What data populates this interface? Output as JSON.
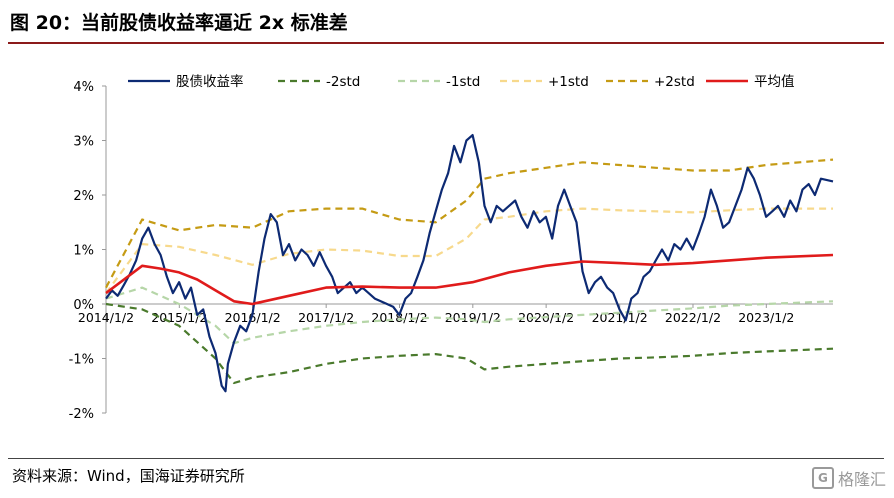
{
  "header": {
    "title": "图 20：当前股债收益率逼近 2x 标准差"
  },
  "footer": {
    "source": "资料来源：Wind，国海证券研究所",
    "watermark": "格隆汇",
    "watermark_mark": "G"
  },
  "chart_data": {
    "type": "line",
    "title": "",
    "xlabel": "",
    "ylabel": "",
    "x_ticks": [
      "2014/1/2",
      "2015/1/2",
      "2016/1/2",
      "2017/1/2",
      "2018/1/2",
      "2019/1/2",
      "2020/1/2",
      "2021/1/2",
      "2022/1/2",
      "2023/1/2"
    ],
    "y_ticks": [
      "4%",
      "3%",
      "2%",
      "1%",
      "0%",
      "-1%",
      "-2%"
    ],
    "ylim": [
      -2,
      4
    ],
    "xlim": [
      "2014-01-02",
      "2023-11-30"
    ],
    "legend_position": "top",
    "series": [
      {
        "name": "股债收益率",
        "color": "#0d2a73",
        "style": "solid",
        "width": 2.2,
        "points": [
          [
            "2014-01-02",
            0.1
          ],
          [
            "2014-02-01",
            0.25
          ],
          [
            "2014-03-01",
            0.15
          ],
          [
            "2014-04-01",
            0.35
          ],
          [
            "2014-05-01",
            0.55
          ],
          [
            "2014-06-01",
            0.8
          ],
          [
            "2014-07-01",
            1.2
          ],
          [
            "2014-08-01",
            1.4
          ],
          [
            "2014-09-01",
            1.1
          ],
          [
            "2014-10-01",
            0.9
          ],
          [
            "2014-11-01",
            0.5
          ],
          [
            "2014-12-01",
            0.2
          ],
          [
            "2015-01-01",
            0.4
          ],
          [
            "2015-02-01",
            0.1
          ],
          [
            "2015-03-01",
            0.3
          ],
          [
            "2015-04-01",
            -0.2
          ],
          [
            "2015-05-01",
            -0.1
          ],
          [
            "2015-06-01",
            -0.6
          ],
          [
            "2015-07-01",
            -0.9
          ],
          [
            "2015-08-01",
            -1.5
          ],
          [
            "2015-08-20",
            -1.6
          ],
          [
            "2015-09-01",
            -1.1
          ],
          [
            "2015-10-01",
            -0.7
          ],
          [
            "2015-11-01",
            -0.4
          ],
          [
            "2015-12-01",
            -0.5
          ],
          [
            "2016-01-01",
            -0.2
          ],
          [
            "2016-02-01",
            0.6
          ],
          [
            "2016-03-01",
            1.2
          ],
          [
            "2016-04-01",
            1.65
          ],
          [
            "2016-05-01",
            1.5
          ],
          [
            "2016-06-01",
            0.9
          ],
          [
            "2016-07-01",
            1.1
          ],
          [
            "2016-08-01",
            0.8
          ],
          [
            "2016-09-01",
            1.0
          ],
          [
            "2016-10-01",
            0.9
          ],
          [
            "2016-11-01",
            0.7
          ],
          [
            "2016-12-01",
            0.95
          ],
          [
            "2017-01-01",
            0.7
          ],
          [
            "2017-02-01",
            0.5
          ],
          [
            "2017-03-01",
            0.2
          ],
          [
            "2017-04-01",
            0.3
          ],
          [
            "2017-05-01",
            0.4
          ],
          [
            "2017-06-01",
            0.2
          ],
          [
            "2017-07-01",
            0.3
          ],
          [
            "2017-08-01",
            0.2
          ],
          [
            "2017-09-01",
            0.1
          ],
          [
            "2017-10-01",
            0.05
          ],
          [
            "2017-11-01",
            0.0
          ],
          [
            "2017-12-01",
            -0.05
          ],
          [
            "2018-01-01",
            -0.2
          ],
          [
            "2018-02-01",
            0.1
          ],
          [
            "2018-03-01",
            0.2
          ],
          [
            "2018-04-01",
            0.5
          ],
          [
            "2018-05-01",
            0.8
          ],
          [
            "2018-06-01",
            1.3
          ],
          [
            "2018-07-01",
            1.7
          ],
          [
            "2018-08-01",
            2.1
          ],
          [
            "2018-09-01",
            2.4
          ],
          [
            "2018-10-01",
            2.9
          ],
          [
            "2018-11-01",
            2.6
          ],
          [
            "2018-12-01",
            3.0
          ],
          [
            "2019-01-01",
            3.1
          ],
          [
            "2019-02-01",
            2.6
          ],
          [
            "2019-03-01",
            1.8
          ],
          [
            "2019-04-01",
            1.5
          ],
          [
            "2019-05-01",
            1.8
          ],
          [
            "2019-06-01",
            1.7
          ],
          [
            "2019-07-01",
            1.8
          ],
          [
            "2019-08-01",
            1.9
          ],
          [
            "2019-09-01",
            1.6
          ],
          [
            "2019-10-01",
            1.4
          ],
          [
            "2019-11-01",
            1.7
          ],
          [
            "2019-12-01",
            1.5
          ],
          [
            "2020-01-01",
            1.6
          ],
          [
            "2020-02-01",
            1.2
          ],
          [
            "2020-03-01",
            1.8
          ],
          [
            "2020-04-01",
            2.1
          ],
          [
            "2020-05-01",
            1.8
          ],
          [
            "2020-06-01",
            1.5
          ],
          [
            "2020-07-01",
            0.6
          ],
          [
            "2020-08-01",
            0.2
          ],
          [
            "2020-09-01",
            0.4
          ],
          [
            "2020-10-01",
            0.5
          ],
          [
            "2020-11-01",
            0.3
          ],
          [
            "2020-12-01",
            0.2
          ],
          [
            "2021-01-01",
            -0.1
          ],
          [
            "2021-02-01",
            -0.3
          ],
          [
            "2021-03-01",
            0.1
          ],
          [
            "2021-04-01",
            0.2
          ],
          [
            "2021-05-01",
            0.5
          ],
          [
            "2021-06-01",
            0.6
          ],
          [
            "2021-07-01",
            0.8
          ],
          [
            "2021-08-01",
            1.0
          ],
          [
            "2021-09-01",
            0.8
          ],
          [
            "2021-10-01",
            1.1
          ],
          [
            "2021-11-01",
            1.0
          ],
          [
            "2021-12-01",
            1.2
          ],
          [
            "2022-01-01",
            1.0
          ],
          [
            "2022-02-01",
            1.3
          ],
          [
            "2022-03-01",
            1.6
          ],
          [
            "2022-04-01",
            2.1
          ],
          [
            "2022-05-01",
            1.8
          ],
          [
            "2022-06-01",
            1.4
          ],
          [
            "2022-07-01",
            1.5
          ],
          [
            "2022-08-01",
            1.8
          ],
          [
            "2022-09-01",
            2.1
          ],
          [
            "2022-10-01",
            2.5
          ],
          [
            "2022-11-01",
            2.3
          ],
          [
            "2022-12-01",
            2.0
          ],
          [
            "2023-01-01",
            1.6
          ],
          [
            "2023-02-01",
            1.7
          ],
          [
            "2023-03-01",
            1.8
          ],
          [
            "2023-04-01",
            1.6
          ],
          [
            "2023-05-01",
            1.9
          ],
          [
            "2023-06-01",
            1.7
          ],
          [
            "2023-07-01",
            2.1
          ],
          [
            "2023-08-01",
            2.2
          ],
          [
            "2023-09-01",
            2.0
          ],
          [
            "2023-10-01",
            2.3
          ],
          [
            "2023-11-30",
            2.25
          ]
        ]
      },
      {
        "name": "-2std",
        "color": "#4a7a2c",
        "style": "dashed",
        "width": 2.2,
        "points": [
          [
            "2014-01-02",
            0.0
          ],
          [
            "2014-07-01",
            -0.1
          ],
          [
            "2015-01-01",
            -0.4
          ],
          [
            "2015-07-01",
            -1.0
          ],
          [
            "2015-10-01",
            -1.45
          ],
          [
            "2016-01-01",
            -1.35
          ],
          [
            "2016-07-01",
            -1.25
          ],
          [
            "2017-01-01",
            -1.1
          ],
          [
            "2017-07-01",
            -1.0
          ],
          [
            "2018-01-01",
            -0.95
          ],
          [
            "2018-07-01",
            -0.92
          ],
          [
            "2018-12-01",
            -1.0
          ],
          [
            "2019-03-01",
            -1.2
          ],
          [
            "2019-07-01",
            -1.15
          ],
          [
            "2020-01-01",
            -1.1
          ],
          [
            "2020-07-01",
            -1.05
          ],
          [
            "2021-01-01",
            -1.0
          ],
          [
            "2021-07-01",
            -0.98
          ],
          [
            "2022-01-01",
            -0.95
          ],
          [
            "2022-07-01",
            -0.9
          ],
          [
            "2023-01-01",
            -0.87
          ],
          [
            "2023-11-30",
            -0.82
          ]
        ]
      },
      {
        "name": "-1std",
        "color": "#b6d6a8",
        "style": "dashed",
        "width": 2.2,
        "points": [
          [
            "2014-01-02",
            0.1
          ],
          [
            "2014-07-01",
            0.3
          ],
          [
            "2015-01-01",
            0.0
          ],
          [
            "2015-07-01",
            -0.4
          ],
          [
            "2015-10-01",
            -0.72
          ],
          [
            "2016-01-01",
            -0.62
          ],
          [
            "2016-07-01",
            -0.5
          ],
          [
            "2017-01-01",
            -0.4
          ],
          [
            "2017-07-01",
            -0.33
          ],
          [
            "2018-01-01",
            -0.28
          ],
          [
            "2018-07-01",
            -0.25
          ],
          [
            "2018-12-01",
            -0.28
          ],
          [
            "2019-03-01",
            -0.33
          ],
          [
            "2019-07-01",
            -0.28
          ],
          [
            "2020-01-01",
            -0.24
          ],
          [
            "2020-07-01",
            -0.2
          ],
          [
            "2021-01-01",
            -0.16
          ],
          [
            "2021-07-01",
            -0.12
          ],
          [
            "2022-01-01",
            -0.08
          ],
          [
            "2022-07-01",
            -0.03
          ],
          [
            "2023-01-01",
            0.0
          ],
          [
            "2023-11-30",
            0.05
          ]
        ]
      },
      {
        "name": "+1std",
        "color": "#f7d98c",
        "style": "dashed",
        "width": 2.2,
        "points": [
          [
            "2014-01-02",
            0.2
          ],
          [
            "2014-07-01",
            1.1
          ],
          [
            "2015-01-01",
            1.05
          ],
          [
            "2015-07-01",
            0.9
          ],
          [
            "2016-01-01",
            0.72
          ],
          [
            "2016-07-01",
            0.92
          ],
          [
            "2017-01-01",
            1.0
          ],
          [
            "2017-07-01",
            0.98
          ],
          [
            "2018-01-01",
            0.88
          ],
          [
            "2018-07-01",
            0.88
          ],
          [
            "2018-12-01",
            1.2
          ],
          [
            "2019-03-01",
            1.55
          ],
          [
            "2019-07-01",
            1.6
          ],
          [
            "2020-01-01",
            1.7
          ],
          [
            "2020-07-01",
            1.75
          ],
          [
            "2021-01-01",
            1.72
          ],
          [
            "2021-07-01",
            1.7
          ],
          [
            "2022-01-01",
            1.68
          ],
          [
            "2022-07-01",
            1.72
          ],
          [
            "2023-01-01",
            1.75
          ],
          [
            "2023-11-30",
            1.75
          ]
        ]
      },
      {
        "name": "+2std",
        "color": "#c59b14",
        "style": "dashed",
        "width": 2.2,
        "points": [
          [
            "2014-01-02",
            0.3
          ],
          [
            "2014-07-01",
            1.55
          ],
          [
            "2015-01-01",
            1.35
          ],
          [
            "2015-07-01",
            1.45
          ],
          [
            "2016-01-01",
            1.4
          ],
          [
            "2016-07-01",
            1.7
          ],
          [
            "2017-01-01",
            1.75
          ],
          [
            "2017-07-01",
            1.75
          ],
          [
            "2018-01-01",
            1.55
          ],
          [
            "2018-07-01",
            1.5
          ],
          [
            "2018-12-01",
            1.9
          ],
          [
            "2019-03-01",
            2.3
          ],
          [
            "2019-07-01",
            2.4
          ],
          [
            "2020-01-01",
            2.5
          ],
          [
            "2020-07-01",
            2.6
          ],
          [
            "2021-01-01",
            2.55
          ],
          [
            "2021-07-01",
            2.5
          ],
          [
            "2022-01-01",
            2.45
          ],
          [
            "2022-07-01",
            2.45
          ],
          [
            "2023-01-01",
            2.55
          ],
          [
            "2023-11-30",
            2.65
          ]
        ]
      },
      {
        "name": "平均值",
        "color": "#e01b1b",
        "style": "solid",
        "width": 2.6,
        "points": [
          [
            "2014-01-02",
            0.2
          ],
          [
            "2014-07-01",
            0.7
          ],
          [
            "2014-10-01",
            0.65
          ],
          [
            "2015-01-01",
            0.58
          ],
          [
            "2015-04-01",
            0.45
          ],
          [
            "2015-07-01",
            0.25
          ],
          [
            "2015-10-01",
            0.05
          ],
          [
            "2016-01-01",
            0.0
          ],
          [
            "2016-07-01",
            0.15
          ],
          [
            "2017-01-01",
            0.3
          ],
          [
            "2017-07-01",
            0.32
          ],
          [
            "2018-01-01",
            0.3
          ],
          [
            "2018-07-01",
            0.3
          ],
          [
            "2019-01-01",
            0.4
          ],
          [
            "2019-07-01",
            0.58
          ],
          [
            "2020-01-01",
            0.7
          ],
          [
            "2020-07-01",
            0.78
          ],
          [
            "2021-01-01",
            0.75
          ],
          [
            "2021-07-01",
            0.72
          ],
          [
            "2022-01-01",
            0.75
          ],
          [
            "2022-07-01",
            0.8
          ],
          [
            "2023-01-01",
            0.85
          ],
          [
            "2023-11-30",
            0.9
          ]
        ]
      }
    ]
  }
}
